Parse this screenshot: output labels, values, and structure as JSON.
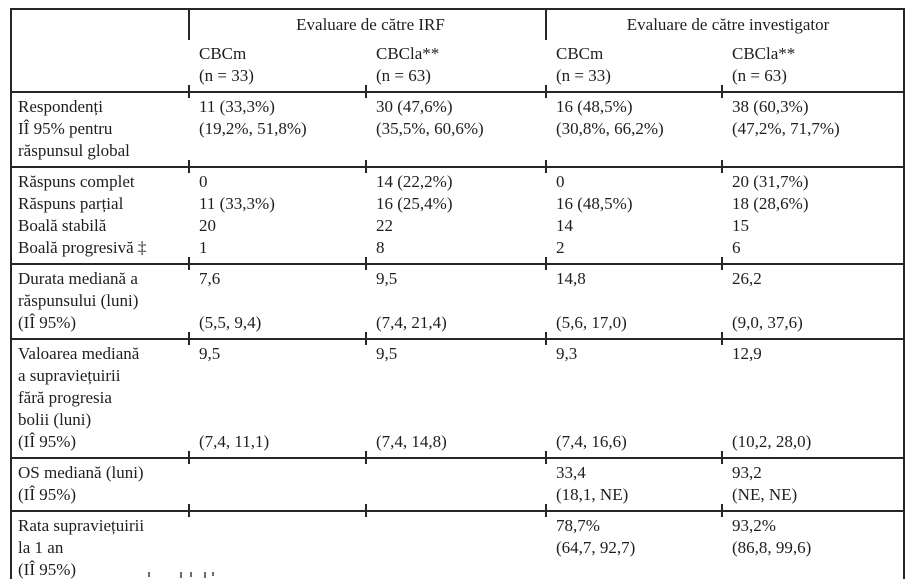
{
  "table": {
    "header": {
      "group_irf": "Evaluare de către IRF",
      "group_investigator": "Evaluare de către investigator",
      "col1": "CBCm\n(n = 33)",
      "col2": "CBCla**\n(n = 63)",
      "col3": "CBCm\n(n = 33)",
      "col4": "CBCla**\n(n = 63)"
    },
    "sections": [
      {
        "label": "Respondenți\nIÎ 95% pentru\nrăspunsul global",
        "c1": "11 (33,3%)\n(19,2%, 51,8%)",
        "c2": "30 (47,6%)\n(35,5%, 60,6%)",
        "c3": "16 (48,5%)\n(30,8%, 66,2%)",
        "c4": "38 (60,3%)\n(47,2%, 71,7%)"
      },
      {
        "label": "Răspuns complet\nRăspuns parțial\nBoală stabilă\nBoală progresivă ‡",
        "c1": "0\n11 (33,3%)\n20\n1",
        "c2": "14 (22,2%)\n16 (25,4%)\n22\n8",
        "c3": "0\n16 (48,5%)\n14\n2",
        "c4": "20 (31,7%)\n18 (28,6%)\n15\n6"
      },
      {
        "label": "Durata mediană a\nrăspunsului (luni)\n(IÎ 95%)",
        "c1": "7,6\n\n(5,5, 9,4)",
        "c2": "9,5\n\n(7,4, 21,4)",
        "c3": "14,8\n\n(5,6, 17,0)",
        "c4": "26,2\n\n(9,0, 37,6)"
      },
      {
        "label": "Valoarea mediană\na supraviețuirii\nfără progresia\nbolii (luni)\n(IÎ 95%)",
        "c1": "9,5\n\n\n\n(7,4, 11,1)",
        "c2": "9,5\n\n\n\n(7,4, 14,8)",
        "c3": "9,3\n\n\n\n(7,4, 16,6)",
        "c4": "12,9\n\n\n\n(10,2, 28,0)"
      },
      {
        "label": "OS mediană (luni)\n(IÎ 95%)",
        "c1": "",
        "c2": "",
        "c3": "33,4\n(18,1, NE)",
        "c4": "93,2\n(NE, NE)"
      },
      {
        "label": "Rata supraviețuirii\nla 1 an\n(IÎ 95%)",
        "c1": "",
        "c2": "",
        "c3": "78,7%\n(64,7, 92,7)",
        "c4": "93,2%\n(86,8, 99,6)"
      }
    ]
  }
}
